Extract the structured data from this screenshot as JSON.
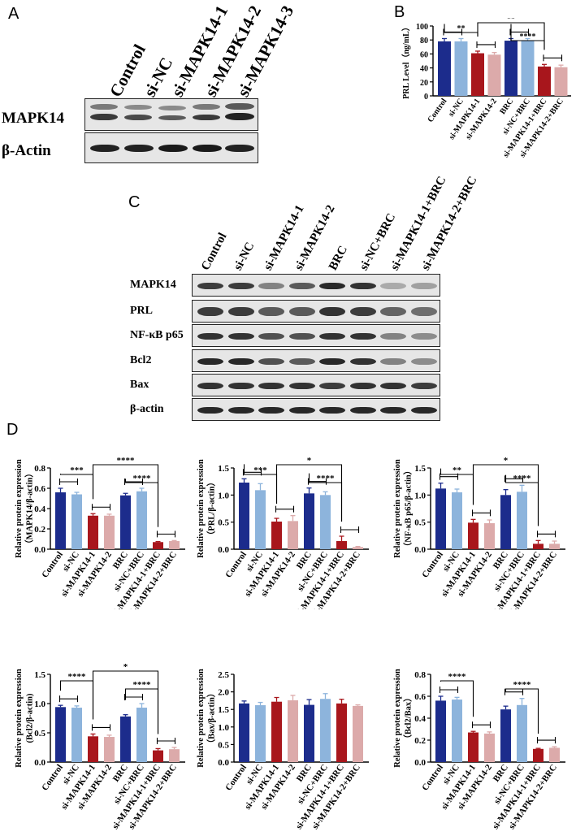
{
  "panels": {
    "A": {
      "letter": "A",
      "lanes": [
        "Control",
        "si-NC",
        "si-MAPK14-1",
        "si-MAPK14-2",
        "si-MAPK14-3"
      ],
      "rows": [
        "MAPK14",
        "β-Actin"
      ]
    },
    "B": {
      "letter": "B"
    },
    "C": {
      "letter": "C",
      "lanes": [
        "Control",
        "si-NC",
        "si-MAPK14-1",
        "si-MAPK14-2",
        "BRC",
        "si-NC+BRC",
        "si-MAPK14-1+BRC",
        "si-MAPK14-2+BRC"
      ],
      "rows": [
        "MAPK14",
        "PRL",
        "NF-κB p65",
        "Bcl2",
        "Bax",
        "β-actin"
      ]
    },
    "D": {
      "letter": "D"
    }
  },
  "colors": {
    "navy": "#1c2c8c",
    "lightblue": "#8db4dc",
    "red": "#a8161c",
    "pink": "#dcaaaa"
  },
  "chart_data": [
    {
      "id": "B",
      "type": "bar",
      "categories": [
        "Control",
        "si-NC",
        "si-MAPK14-1",
        "si-MAPK14-2",
        "BRC",
        "si-NC+BRC",
        "si-MAPK14-1+BRC",
        "si-MAPK14-2+BRC"
      ],
      "values": [
        78,
        78,
        61,
        59,
        79,
        79,
        42,
        41
      ],
      "errors": [
        4,
        4,
        3,
        3,
        3,
        3,
        3,
        3
      ],
      "ylabel": "PRL Level（ng/mL）",
      "ylim": [
        0,
        100
      ],
      "yticks": [
        "0",
        "20",
        "40",
        "60",
        "80",
        "100"
      ],
      "significance": [
        {
          "from": 0,
          "to": 2,
          "label": "**"
        },
        {
          "from": 2,
          "to": 6,
          "label": "**"
        },
        {
          "from": 4,
          "to": 6,
          "label": "****"
        }
      ],
      "brackets": [
        [
          0,
          1
        ],
        [
          2,
          3
        ],
        [
          4,
          5
        ],
        [
          6,
          7
        ]
      ]
    },
    {
      "id": "D1",
      "type": "bar",
      "categories": [
        "Control",
        "si-NC",
        "si-MAPK14-1",
        "si-MAPK14-2",
        "BRC",
        "si-NC+BRC",
        "si-MAPK14-1+BRC",
        "si-MAPK14-2+BRC"
      ],
      "values": [
        0.56,
        0.54,
        0.33,
        0.33,
        0.53,
        0.57,
        0.07,
        0.08
      ],
      "errors": [
        0.04,
        0.02,
        0.02,
        0.015,
        0.02,
        0.03,
        0.005,
        0.005
      ],
      "ylabel": "Relative protein expression",
      "ylabel2": "（MAPK14/β-actin）",
      "ylim": [
        0,
        0.8
      ],
      "yticks": [
        "0.0",
        "0.2",
        "0.4",
        "0.6",
        "0.8"
      ],
      "significance": [
        {
          "from": 0,
          "to": 2,
          "label": "***"
        },
        {
          "from": 2,
          "to": 6,
          "label": "****"
        },
        {
          "from": 4,
          "to": 6,
          "label": "****"
        }
      ],
      "brackets": [
        [
          0,
          1
        ],
        [
          2,
          3
        ],
        [
          4,
          5
        ],
        [
          6,
          7
        ]
      ]
    },
    {
      "id": "D2",
      "type": "bar",
      "categories": [
        "Control",
        "si-NC",
        "si-MAPK14-1",
        "si-MAPK14-2",
        "BRC",
        "si-NC+BRC",
        "si-MAPK14-1+BRC",
        "si-MAPK14-2+BRC"
      ],
      "values": [
        1.23,
        1.09,
        0.51,
        0.52,
        1.03,
        1.0,
        0.15,
        0.04
      ],
      "errors": [
        0.07,
        0.12,
        0.06,
        0.1,
        0.1,
        0.06,
        0.09,
        0.01
      ],
      "ylabel": "Relative protein expression",
      "ylabel2": "（PRL/β-actin）",
      "ylim": [
        0,
        1.5
      ],
      "yticks": [
        "0.0",
        "0.5",
        "1.0",
        "1.5"
      ],
      "significance": [
        {
          "from": 0,
          "to": 2,
          "label": "***"
        },
        {
          "from": 2,
          "to": 6,
          "label": "*"
        },
        {
          "from": 4,
          "to": 6,
          "label": "****"
        }
      ],
      "brackets": [
        [
          0,
          1
        ],
        [
          2,
          3
        ],
        [
          4,
          5
        ],
        [
          6,
          7
        ]
      ]
    },
    {
      "id": "D3",
      "type": "bar",
      "categories": [
        "Control",
        "si-NC",
        "si-MAPK14-1",
        "si-MAPK14-2",
        "BRC",
        "si-NC+BRC",
        "si-MAPK14-1+BRC",
        "si-MAPK14-2+BRC"
      ],
      "values": [
        1.12,
        1.05,
        0.49,
        0.48,
        1.0,
        1.06,
        0.1,
        0.1
      ],
      "errors": [
        0.1,
        0.06,
        0.06,
        0.06,
        0.1,
        0.12,
        0.06,
        0.05
      ],
      "ylabel": "Relative protein expression",
      "ylabel2": "（NF-κB p65/β-actin）",
      "ylim": [
        0,
        1.5
      ],
      "yticks": [
        "0.0",
        "0.5",
        "1.0",
        "1.5"
      ],
      "significance": [
        {
          "from": 0,
          "to": 2,
          "label": "**"
        },
        {
          "from": 2,
          "to": 6,
          "label": "*"
        },
        {
          "from": 4,
          "to": 6,
          "label": "****"
        }
      ],
      "brackets": [
        [
          0,
          1
        ],
        [
          2,
          3
        ],
        [
          4,
          5
        ],
        [
          6,
          7
        ]
      ]
    },
    {
      "id": "D4",
      "type": "bar",
      "categories": [
        "Control",
        "si-NC",
        "si-MAPK14-1",
        "si-MAPK14-2",
        "BRC",
        "si-NC+BRC",
        "si-MAPK14-1+BRC",
        "si-MAPK14-2+BRC"
      ],
      "values": [
        0.94,
        0.93,
        0.44,
        0.43,
        0.78,
        0.93,
        0.2,
        0.22
      ],
      "errors": [
        0.03,
        0.03,
        0.04,
        0.03,
        0.03,
        0.07,
        0.03,
        0.03
      ],
      "ylabel": "Relative protein expression",
      "ylabel2": "(Bcl2/β-actin)",
      "ylim": [
        0,
        1.5
      ],
      "yticks": [
        "0.0",
        "0.5",
        "1.0",
        "1.5"
      ],
      "significance": [
        {
          "from": 0,
          "to": 2,
          "label": "****"
        },
        {
          "from": 2,
          "to": 6,
          "label": "*"
        },
        {
          "from": 4,
          "to": 6,
          "label": "****"
        }
      ],
      "brackets": [
        [
          0,
          1
        ],
        [
          2,
          3
        ],
        [
          4,
          5
        ],
        [
          6,
          7
        ]
      ]
    },
    {
      "id": "D5",
      "type": "bar",
      "categories": [
        "Control",
        "si-NC",
        "si-MAPK14-1",
        "si-MAPK14-2",
        "BRC",
        "si-NC+BRC",
        "si-MAPK14-1+BRC",
        "si-MAPK14-2+BRC"
      ],
      "values": [
        1.67,
        1.62,
        1.72,
        1.76,
        1.63,
        1.8,
        1.67,
        1.6
      ],
      "errors": [
        0.07,
        0.08,
        0.12,
        0.14,
        0.15,
        0.15,
        0.12,
        0.03
      ],
      "ylabel": "Relative protein expression",
      "ylabel2": "（Bax/β-actin）",
      "ylim": [
        0,
        2.5
      ],
      "yticks": [
        "0.0",
        "0.5",
        "1.0",
        "1.5",
        "2.0",
        "2.5"
      ],
      "significance": [],
      "brackets": []
    },
    {
      "id": "D6",
      "type": "bar",
      "categories": [
        "Control",
        "si-NC",
        "si-MAPK14-1",
        "si-MAPK14-2",
        "BRC",
        "si-NC+BRC",
        "si-MAPK14-1+BRC",
        "si-MAPK14-2+BRC"
      ],
      "values": [
        0.56,
        0.57,
        0.27,
        0.26,
        0.48,
        0.52,
        0.12,
        0.13
      ],
      "errors": [
        0.04,
        0.02,
        0.01,
        0.015,
        0.03,
        0.06,
        0.005,
        0.01
      ],
      "ylabel": "Relative protein expression",
      "ylabel2": "（Bcl2/Bax）",
      "ylim": [
        0,
        0.8
      ],
      "yticks": [
        "0.0",
        "0.2",
        "0.4",
        "0.6",
        "0.8"
      ],
      "significance": [
        {
          "from": 0,
          "to": 2,
          "label": "****"
        },
        {
          "from": 4,
          "to": 6,
          "label": "****"
        }
      ],
      "brackets": [
        [
          0,
          1
        ],
        [
          2,
          3
        ],
        [
          4,
          5
        ],
        [
          6,
          7
        ]
      ]
    }
  ]
}
